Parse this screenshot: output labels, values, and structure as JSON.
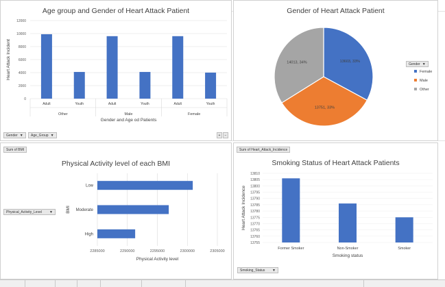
{
  "charts": {
    "age_gender": {
      "title": "Age group and Gender of Heart Attack Patient",
      "ylabel": "Heart Attack Incident",
      "xlabel": "Gender and Age od Patients",
      "yticks": [
        "12000",
        "10000",
        "8000",
        "6000",
        "4000",
        "2000",
        "0"
      ],
      "filters": [
        {
          "label": "Gender"
        },
        {
          "label": "Age_Group"
        }
      ],
      "groups": [
        "Other",
        "Male",
        "Female"
      ],
      "sub": [
        "Adult",
        "Youth",
        "Adult",
        "Youth",
        "Adult",
        "Youth"
      ]
    },
    "gender_pie": {
      "title": "Gender of Heart Attack Patient",
      "legend_title": "Gender",
      "legend": [
        "Female",
        "Male",
        "Other"
      ],
      "labels": [
        "13603, 33%",
        "13751, 33%",
        "14013, 34%"
      ]
    },
    "bmi": {
      "title": "Physical Activity level of each BMI",
      "field_button": "Sum of BMI",
      "filter": "Physical_Activity_Level",
      "ylabel": "BMI",
      "xlabel": "Physical Activity level",
      "xticks": [
        "2285000",
        "2290000",
        "2295000",
        "2300000",
        "2305000"
      ]
    },
    "smoking": {
      "title": "Smoking Status of Heart Attack Patients",
      "field_button": "Sum of Heart_Attack_Incidence",
      "filter": "Smoking_Status",
      "ylabel": "Heart Attack Incidence",
      "xlabel": "Smoking status",
      "yticks": [
        "13810",
        "13805",
        "13800",
        "13795",
        "13790",
        "13785",
        "13780",
        "13775",
        "13770",
        "13765",
        "13760",
        "13755"
      ]
    }
  },
  "chart_data": [
    {
      "type": "bar",
      "title": "Age group and Gender of Heart Attack Patient",
      "xlabel": "Gender and Age od Patients",
      "ylabel": "Heart Attack Incident",
      "categories": [
        "Other - Adult",
        "Other - Youth",
        "Male - Adult",
        "Male - Youth",
        "Female - Adult",
        "Female - Youth"
      ],
      "values": [
        9900,
        4100,
        9600,
        4100,
        9600,
        4000
      ],
      "ylim": [
        0,
        12000
      ],
      "color": "#4472c4"
    },
    {
      "type": "pie",
      "title": "Gender of Heart Attack Patient",
      "categories": [
        "Female",
        "Male",
        "Other"
      ],
      "values": [
        13603,
        13751,
        14013
      ],
      "colors": [
        "#4472c4",
        "#ed7d31",
        "#a5a5a5"
      ],
      "legend": "right"
    },
    {
      "type": "bar",
      "orientation": "horizontal",
      "title": "Physical Activity level of each BMI",
      "xlabel": "Physical Activity level",
      "ylabel": "BMI",
      "categories": [
        "Low",
        "Moderate",
        "High"
      ],
      "values": [
        2300900,
        2296900,
        2291300
      ],
      "xlim": [
        2285000,
        2305000
      ],
      "color": "#4472c4"
    },
    {
      "type": "bar",
      "title": "Smoking Status of Heart Attack Patients",
      "xlabel": "Smoking status",
      "ylabel": "Heart Attack Incidence",
      "categories": [
        "Former Smoker",
        "Non-Smoker",
        "Smoker"
      ],
      "values": [
        13806,
        13786,
        13775
      ],
      "ylim": [
        13755,
        13810
      ],
      "color": "#4472c4"
    }
  ]
}
